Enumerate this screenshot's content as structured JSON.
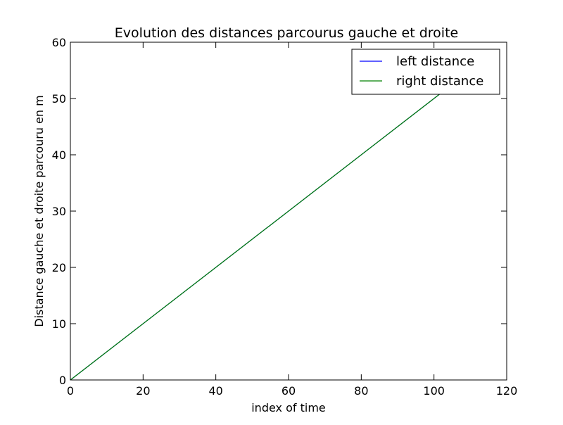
{
  "chart_data": {
    "type": "line",
    "title": "Evolution des distances parcourus gauche et droite",
    "xlabel": "index of time",
    "ylabel": "Distance gauche et droite parcouru en m",
    "xlim": [
      0,
      120
    ],
    "ylim": [
      0,
      60
    ],
    "xticks": [
      0,
      20,
      40,
      60,
      80,
      100,
      120
    ],
    "yticks": [
      0,
      10,
      20,
      30,
      40,
      50,
      60
    ],
    "grid": false,
    "legend_position": "top-right",
    "series": [
      {
        "name": "left distance",
        "color": "#0000ff",
        "x": [
          0,
          102
        ],
        "y": [
          0,
          51
        ]
      },
      {
        "name": "right distance",
        "color": "#008000",
        "x": [
          0,
          102
        ],
        "y": [
          0,
          51
        ]
      }
    ]
  }
}
